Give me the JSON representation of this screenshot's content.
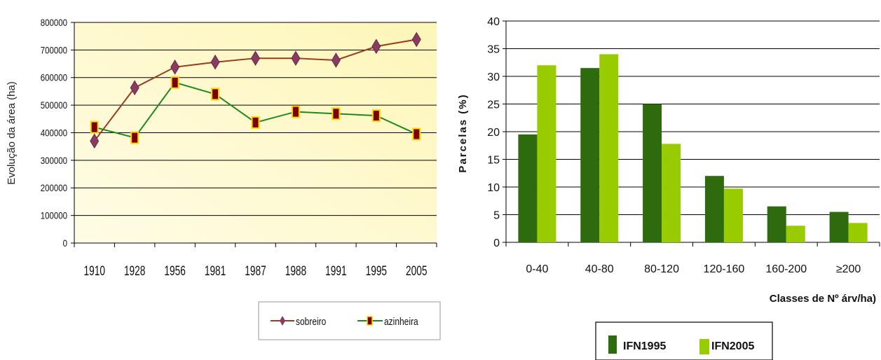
{
  "chart_data": [
    {
      "type": "line",
      "title": "",
      "xlabel": "",
      "ylabel": "Evolução da área (ha)",
      "categories": [
        "1910",
        "1928",
        "1956",
        "1981",
        "1987",
        "1988",
        "1991",
        "1995",
        "2005"
      ],
      "series": [
        {
          "name": "sobreiro",
          "values": [
            370000,
            563000,
            638000,
            656000,
            670000,
            670000,
            663000,
            713000,
            738000
          ],
          "color": "#9b3a1e",
          "marker": "diamond",
          "marker_color": "#8b3a62"
        },
        {
          "name": "azinheira",
          "values": [
            420000,
            382000,
            582000,
            540000,
            437000,
            476000,
            469000,
            462000,
            395000
          ],
          "color": "#1f8a1f",
          "marker": "square",
          "marker_color": "#7a0000"
        }
      ],
      "ylim": [
        0,
        800000
      ],
      "yticks": [
        "0",
        "100000",
        "200000",
        "300000",
        "400000",
        "500000",
        "600000",
        "700000",
        "800000"
      ],
      "grid": true,
      "legend": "bottom",
      "plot_background": "#fffbd0"
    },
    {
      "type": "bar",
      "title": "",
      "xlabel": "Classes de Nº árv/ha)",
      "ylabel": "Parcelas (%)",
      "categories": [
        "0-40",
        "40-80",
        "80-120",
        "120-160",
        "160-200",
        "≥200"
      ],
      "series": [
        {
          "name": "IFN1995",
          "values": [
            19.5,
            31.5,
            25.0,
            12.0,
            6.5,
            5.5
          ],
          "color": "#2e6b0e"
        },
        {
          "name": "IFN2005",
          "values": [
            32.0,
            34.0,
            17.8,
            9.7,
            3.0,
            3.5
          ],
          "color": "#99cc00"
        }
      ],
      "ylim": [
        0,
        40
      ],
      "yticks": [
        "0",
        "5",
        "10",
        "15",
        "20",
        "25",
        "30",
        "35",
        "40"
      ],
      "grid": true,
      "legend": "bottom"
    }
  ]
}
